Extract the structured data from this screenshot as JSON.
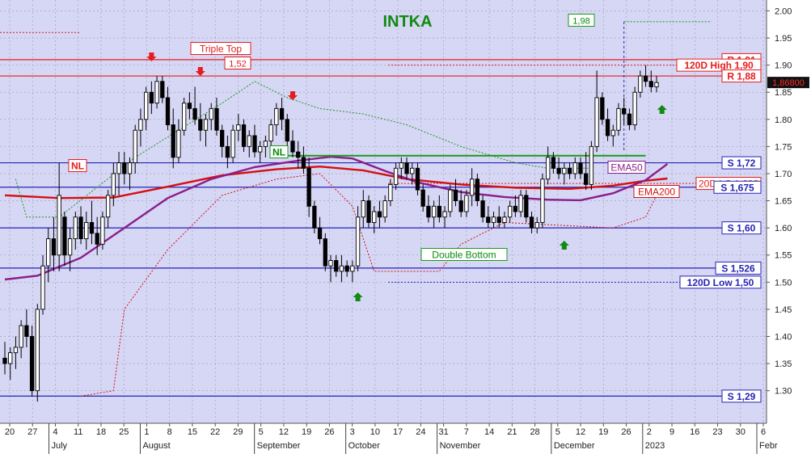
{
  "chart_data": {
    "type": "candlestick",
    "title": "INTKA",
    "ylim": [
      1.24,
      2.02
    ],
    "y_ticks": [
      "1.30",
      "1.35",
      "1.40",
      "1.45",
      "1.50",
      "1.55",
      "1.60",
      "1.65",
      "1.70",
      "1.75",
      "1.80",
      "1.85",
      "1.90",
      "1.95",
      "2.00"
    ],
    "x_day_ticks": [
      "20",
      "27",
      "4",
      "11",
      "18",
      "25",
      "1",
      "8",
      "15",
      "22",
      "29",
      "5",
      "12",
      "19",
      "26",
      "3",
      "10",
      "17",
      "24",
      "31",
      "7",
      "14",
      "21",
      "28",
      "5",
      "12",
      "19",
      "26",
      "2",
      "9",
      "16",
      "23",
      "30",
      "6"
    ],
    "x_month_labels": [
      "July",
      "August",
      "September",
      "October",
      "November",
      "December",
      "2023",
      "Febr"
    ],
    "last_price_label": "1,86800",
    "colors": {
      "background": "#d6d6f5",
      "grid": "#9a9ab8",
      "candle": "#000000",
      "resistance": "#e51c1c",
      "support": "#2424b4",
      "ema50": "#8a1e8a",
      "ema200": "#d41010",
      "neckline": "#1a9a1a",
      "pattern_label": "#0a8a0a",
      "title": "#118a11"
    },
    "horizontal_levels": [
      {
        "label": "R 1,91",
        "value": 1.91,
        "kind": "resistance"
      },
      {
        "label": "120D High 1,90",
        "value": 1.9,
        "kind": "resistance_dotted"
      },
      {
        "label": "R 1,88",
        "value": 1.88,
        "kind": "resistance"
      },
      {
        "label": "S 1,72",
        "value": 1.72,
        "kind": "support"
      },
      {
        "label": "20D LC 1,682",
        "value": 1.682,
        "kind": "resistance_dotted"
      },
      {
        "label": "S 1,675",
        "value": 1.675,
        "kind": "support"
      },
      {
        "label": "S 1,60",
        "value": 1.6,
        "kind": "support"
      },
      {
        "label": "S 1,526",
        "value": 1.526,
        "kind": "support"
      },
      {
        "label": "120D Low 1,50",
        "value": 1.5,
        "kind": "support_dotted"
      },
      {
        "label": "S 1,29",
        "value": 1.29,
        "kind": "support"
      }
    ],
    "annotations": {
      "triple_top": "Triple Top",
      "triple_top_height": "1,52",
      "double_bottom": "Double Bottom",
      "neckline": "NL",
      "neckline_left": "NL",
      "target": "1,98",
      "ema50": "EMA50",
      "ema200": "EMA200"
    },
    "ema50": [
      [
        0,
        1.505
      ],
      [
        6,
        1.512
      ],
      [
        14,
        1.545
      ],
      [
        22,
        1.6
      ],
      [
        30,
        1.655
      ],
      [
        38,
        1.69
      ],
      [
        46,
        1.712
      ],
      [
        54,
        1.724
      ],
      [
        60,
        1.731
      ],
      [
        64,
        1.728
      ],
      [
        70,
        1.705
      ],
      [
        76,
        1.684
      ],
      [
        84,
        1.666
      ],
      [
        92,
        1.657
      ],
      [
        100,
        1.652
      ],
      [
        106,
        1.651
      ],
      [
        112,
        1.664
      ],
      [
        118,
        1.688
      ],
      [
        122,
        1.718
      ]
    ],
    "ema200": [
      [
        0,
        1.66
      ],
      [
        10,
        1.655
      ],
      [
        20,
        1.656
      ],
      [
        30,
        1.676
      ],
      [
        40,
        1.697
      ],
      [
        50,
        1.708
      ],
      [
        58,
        1.713
      ],
      [
        66,
        1.706
      ],
      [
        74,
        1.69
      ],
      [
        84,
        1.68
      ],
      [
        94,
        1.674
      ],
      [
        104,
        1.672
      ],
      [
        112,
        1.678
      ],
      [
        118,
        1.687
      ],
      [
        122,
        1.691
      ]
    ],
    "candles": [
      {
        "o": 1.36,
        "h": 1.39,
        "l": 1.33,
        "c": 1.35
      },
      {
        "o": 1.35,
        "h": 1.38,
        "l": 1.32,
        "c": 1.37
      },
      {
        "o": 1.37,
        "h": 1.4,
        "l": 1.34,
        "c": 1.38
      },
      {
        "o": 1.38,
        "h": 1.43,
        "l": 1.36,
        "c": 1.42
      },
      {
        "o": 1.42,
        "h": 1.45,
        "l": 1.38,
        "c": 1.4
      },
      {
        "o": 1.4,
        "h": 1.42,
        "l": 1.29,
        "c": 1.3
      },
      {
        "o": 1.3,
        "h": 1.46,
        "l": 1.28,
        "c": 1.45
      },
      {
        "o": 1.45,
        "h": 1.55,
        "l": 1.44,
        "c": 1.53
      },
      {
        "o": 1.53,
        "h": 1.6,
        "l": 1.5,
        "c": 1.58
      },
      {
        "o": 1.58,
        "h": 1.62,
        "l": 1.52,
        "c": 1.55
      },
      {
        "o": 1.55,
        "h": 1.72,
        "l": 1.52,
        "c": 1.66
      },
      {
        "o": 1.62,
        "h": 1.63,
        "l": 1.53,
        "c": 1.55
      },
      {
        "o": 1.55,
        "h": 1.6,
        "l": 1.52,
        "c": 1.58
      },
      {
        "o": 1.58,
        "h": 1.63,
        "l": 1.56,
        "c": 1.62
      },
      {
        "o": 1.62,
        "h": 1.64,
        "l": 1.57,
        "c": 1.58
      },
      {
        "o": 1.58,
        "h": 1.63,
        "l": 1.56,
        "c": 1.61
      },
      {
        "o": 1.61,
        "h": 1.65,
        "l": 1.57,
        "c": 1.59
      },
      {
        "o": 1.59,
        "h": 1.62,
        "l": 1.55,
        "c": 1.57
      },
      {
        "o": 1.57,
        "h": 1.63,
        "l": 1.56,
        "c": 1.62
      },
      {
        "o": 1.62,
        "h": 1.67,
        "l": 1.6,
        "c": 1.66
      },
      {
        "o": 1.66,
        "h": 1.72,
        "l": 1.64,
        "c": 1.7
      },
      {
        "o": 1.7,
        "h": 1.74,
        "l": 1.66,
        "c": 1.72
      },
      {
        "o": 1.72,
        "h": 1.74,
        "l": 1.68,
        "c": 1.7
      },
      {
        "o": 1.7,
        "h": 1.73,
        "l": 1.67,
        "c": 1.72
      },
      {
        "o": 1.72,
        "h": 1.79,
        "l": 1.7,
        "c": 1.78
      },
      {
        "o": 1.78,
        "h": 1.82,
        "l": 1.75,
        "c": 1.8
      },
      {
        "o": 1.8,
        "h": 1.86,
        "l": 1.78,
        "c": 1.85
      },
      {
        "o": 1.85,
        "h": 1.87,
        "l": 1.81,
        "c": 1.83
      },
      {
        "o": 1.83,
        "h": 1.88,
        "l": 1.82,
        "c": 1.87
      },
      {
        "o": 1.87,
        "h": 1.88,
        "l": 1.83,
        "c": 1.84
      },
      {
        "o": 1.84,
        "h": 1.86,
        "l": 1.78,
        "c": 1.79
      },
      {
        "o": 1.79,
        "h": 1.82,
        "l": 1.71,
        "c": 1.73
      },
      {
        "o": 1.73,
        "h": 1.8,
        "l": 1.72,
        "c": 1.78
      },
      {
        "o": 1.78,
        "h": 1.84,
        "l": 1.77,
        "c": 1.83
      },
      {
        "o": 1.83,
        "h": 1.85,
        "l": 1.8,
        "c": 1.82
      },
      {
        "o": 1.82,
        "h": 1.86,
        "l": 1.79,
        "c": 1.8
      },
      {
        "o": 1.8,
        "h": 1.83,
        "l": 1.76,
        "c": 1.78
      },
      {
        "o": 1.78,
        "h": 1.81,
        "l": 1.75,
        "c": 1.8
      },
      {
        "o": 1.8,
        "h": 1.83,
        "l": 1.78,
        "c": 1.82
      },
      {
        "o": 1.82,
        "h": 1.84,
        "l": 1.77,
        "c": 1.78
      },
      {
        "o": 1.78,
        "h": 1.79,
        "l": 1.73,
        "c": 1.75
      },
      {
        "o": 1.75,
        "h": 1.77,
        "l": 1.71,
        "c": 1.73
      },
      {
        "o": 1.73,
        "h": 1.79,
        "l": 1.72,
        "c": 1.78
      },
      {
        "o": 1.78,
        "h": 1.81,
        "l": 1.76,
        "c": 1.79
      },
      {
        "o": 1.79,
        "h": 1.8,
        "l": 1.74,
        "c": 1.75
      },
      {
        "o": 1.75,
        "h": 1.78,
        "l": 1.73,
        "c": 1.77
      },
      {
        "o": 1.77,
        "h": 1.79,
        "l": 1.73,
        "c": 1.74
      },
      {
        "o": 1.74,
        "h": 1.76,
        "l": 1.72,
        "c": 1.75
      },
      {
        "o": 1.75,
        "h": 1.77,
        "l": 1.73,
        "c": 1.76
      },
      {
        "o": 1.76,
        "h": 1.8,
        "l": 1.75,
        "c": 1.79
      },
      {
        "o": 1.79,
        "h": 1.83,
        "l": 1.77,
        "c": 1.82
      },
      {
        "o": 1.82,
        "h": 1.84,
        "l": 1.78,
        "c": 1.8
      },
      {
        "o": 1.8,
        "h": 1.81,
        "l": 1.75,
        "c": 1.76
      },
      {
        "o": 1.76,
        "h": 1.78,
        "l": 1.73,
        "c": 1.74
      },
      {
        "o": 1.74,
        "h": 1.76,
        "l": 1.71,
        "c": 1.73
      },
      {
        "o": 1.73,
        "h": 1.75,
        "l": 1.7,
        "c": 1.71
      },
      {
        "o": 1.71,
        "h": 1.73,
        "l": 1.62,
        "c": 1.64
      },
      {
        "o": 1.64,
        "h": 1.65,
        "l": 1.59,
        "c": 1.6
      },
      {
        "o": 1.6,
        "h": 1.62,
        "l": 1.57,
        "c": 1.58
      },
      {
        "o": 1.58,
        "h": 1.59,
        "l": 1.52,
        "c": 1.53
      },
      {
        "o": 1.53,
        "h": 1.55,
        "l": 1.5,
        "c": 1.54
      },
      {
        "o": 1.54,
        "h": 1.55,
        "l": 1.51,
        "c": 1.52
      },
      {
        "o": 1.52,
        "h": 1.55,
        "l": 1.5,
        "c": 1.53
      },
      {
        "o": 1.53,
        "h": 1.54,
        "l": 1.51,
        "c": 1.52
      },
      {
        "o": 1.52,
        "h": 1.54,
        "l": 1.5,
        "c": 1.53
      },
      {
        "o": 1.53,
        "h": 1.64,
        "l": 1.52,
        "c": 1.62
      },
      {
        "o": 1.62,
        "h": 1.67,
        "l": 1.6,
        "c": 1.65
      },
      {
        "o": 1.65,
        "h": 1.66,
        "l": 1.6,
        "c": 1.61
      },
      {
        "o": 1.61,
        "h": 1.64,
        "l": 1.59,
        "c": 1.63
      },
      {
        "o": 1.63,
        "h": 1.65,
        "l": 1.6,
        "c": 1.62
      },
      {
        "o": 1.62,
        "h": 1.66,
        "l": 1.61,
        "c": 1.65
      },
      {
        "o": 1.65,
        "h": 1.69,
        "l": 1.64,
        "c": 1.68
      },
      {
        "o": 1.68,
        "h": 1.72,
        "l": 1.67,
        "c": 1.71
      },
      {
        "o": 1.71,
        "h": 1.73,
        "l": 1.69,
        "c": 1.72
      },
      {
        "o": 1.72,
        "h": 1.73,
        "l": 1.69,
        "c": 1.7
      },
      {
        "o": 1.7,
        "h": 1.72,
        "l": 1.68,
        "c": 1.71
      },
      {
        "o": 1.71,
        "h": 1.72,
        "l": 1.66,
        "c": 1.67
      },
      {
        "o": 1.67,
        "h": 1.68,
        "l": 1.63,
        "c": 1.64
      },
      {
        "o": 1.64,
        "h": 1.66,
        "l": 1.61,
        "c": 1.62
      },
      {
        "o": 1.62,
        "h": 1.65,
        "l": 1.6,
        "c": 1.64
      },
      {
        "o": 1.64,
        "h": 1.66,
        "l": 1.61,
        "c": 1.62
      },
      {
        "o": 1.62,
        "h": 1.64,
        "l": 1.6,
        "c": 1.63
      },
      {
        "o": 1.63,
        "h": 1.68,
        "l": 1.62,
        "c": 1.67
      },
      {
        "o": 1.67,
        "h": 1.69,
        "l": 1.64,
        "c": 1.65
      },
      {
        "o": 1.65,
        "h": 1.67,
        "l": 1.62,
        "c": 1.63
      },
      {
        "o": 1.63,
        "h": 1.67,
        "l": 1.62,
        "c": 1.66
      },
      {
        "o": 1.66,
        "h": 1.71,
        "l": 1.64,
        "c": 1.69
      },
      {
        "o": 1.69,
        "h": 1.7,
        "l": 1.64,
        "c": 1.65
      },
      {
        "o": 1.65,
        "h": 1.66,
        "l": 1.61,
        "c": 1.62
      },
      {
        "o": 1.62,
        "h": 1.64,
        "l": 1.6,
        "c": 1.61
      },
      {
        "o": 1.61,
        "h": 1.63,
        "l": 1.6,
        "c": 1.62
      },
      {
        "o": 1.62,
        "h": 1.64,
        "l": 1.6,
        "c": 1.61
      },
      {
        "o": 1.61,
        "h": 1.63,
        "l": 1.6,
        "c": 1.62
      },
      {
        "o": 1.62,
        "h": 1.65,
        "l": 1.61,
        "c": 1.64
      },
      {
        "o": 1.64,
        "h": 1.66,
        "l": 1.62,
        "c": 1.63
      },
      {
        "o": 1.63,
        "h": 1.67,
        "l": 1.62,
        "c": 1.66
      },
      {
        "o": 1.66,
        "h": 1.67,
        "l": 1.61,
        "c": 1.62
      },
      {
        "o": 1.62,
        "h": 1.63,
        "l": 1.59,
        "c": 1.6
      },
      {
        "o": 1.6,
        "h": 1.62,
        "l": 1.59,
        "c": 1.61
      },
      {
        "o": 1.61,
        "h": 1.7,
        "l": 1.6,
        "c": 1.69
      },
      {
        "o": 1.69,
        "h": 1.75,
        "l": 1.68,
        "c": 1.73
      },
      {
        "o": 1.73,
        "h": 1.74,
        "l": 1.7,
        "c": 1.71
      },
      {
        "o": 1.71,
        "h": 1.73,
        "l": 1.69,
        "c": 1.7
      },
      {
        "o": 1.7,
        "h": 1.72,
        "l": 1.68,
        "c": 1.71
      },
      {
        "o": 1.71,
        "h": 1.72,
        "l": 1.69,
        "c": 1.7
      },
      {
        "o": 1.7,
        "h": 1.73,
        "l": 1.69,
        "c": 1.72
      },
      {
        "o": 1.72,
        "h": 1.73,
        "l": 1.69,
        "c": 1.7
      },
      {
        "o": 1.7,
        "h": 1.74,
        "l": 1.67,
        "c": 1.68
      },
      {
        "o": 1.68,
        "h": 1.76,
        "l": 1.67,
        "c": 1.75
      },
      {
        "o": 1.75,
        "h": 1.89,
        "l": 1.74,
        "c": 1.84
      },
      {
        "o": 1.84,
        "h": 1.85,
        "l": 1.79,
        "c": 1.8
      },
      {
        "o": 1.8,
        "h": 1.82,
        "l": 1.76,
        "c": 1.77
      },
      {
        "o": 1.77,
        "h": 1.79,
        "l": 1.75,
        "c": 1.78
      },
      {
        "o": 1.78,
        "h": 1.83,
        "l": 1.77,
        "c": 1.82
      },
      {
        "o": 1.82,
        "h": 1.84,
        "l": 1.79,
        "c": 1.81
      },
      {
        "o": 1.81,
        "h": 1.82,
        "l": 1.78,
        "c": 1.79
      },
      {
        "o": 1.79,
        "h": 1.86,
        "l": 1.78,
        "c": 1.85
      },
      {
        "o": 1.85,
        "h": 1.89,
        "l": 1.84,
        "c": 1.88
      },
      {
        "o": 1.88,
        "h": 1.9,
        "l": 1.86,
        "c": 1.87
      },
      {
        "o": 1.87,
        "h": 1.89,
        "l": 1.85,
        "c": 1.86
      },
      {
        "o": 1.86,
        "h": 1.88,
        "l": 1.85,
        "c": 1.868
      }
    ]
  }
}
